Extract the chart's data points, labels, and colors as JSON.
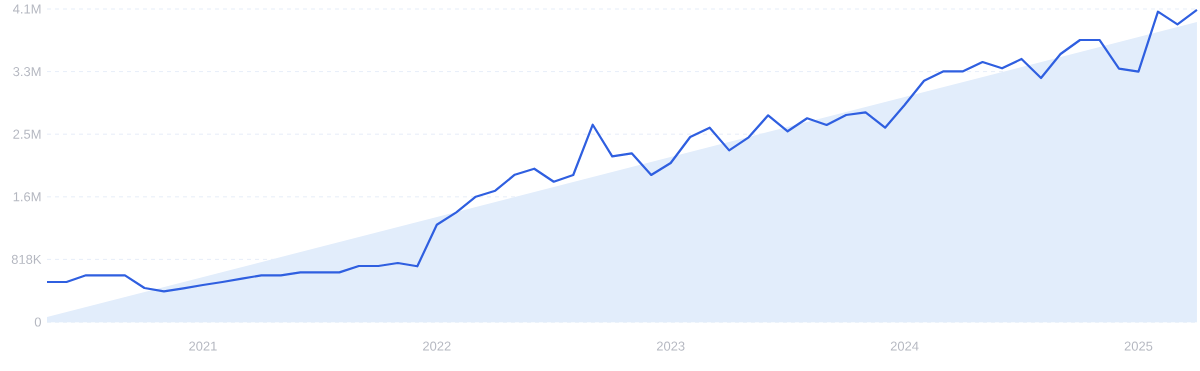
{
  "chart_data": {
    "type": "line",
    "x": [
      "2020-05",
      "2020-06",
      "2020-07",
      "2020-08",
      "2020-09",
      "2020-10",
      "2020-11",
      "2020-12",
      "2021-01",
      "2021-02",
      "2021-03",
      "2021-04",
      "2021-05",
      "2021-06",
      "2021-07",
      "2021-08",
      "2021-09",
      "2021-10",
      "2021-11",
      "2021-12",
      "2022-01",
      "2022-02",
      "2022-03",
      "2022-04",
      "2022-05",
      "2022-06",
      "2022-07",
      "2022-08",
      "2022-09",
      "2022-10",
      "2022-11",
      "2022-12",
      "2023-01",
      "2023-02",
      "2023-03",
      "2023-04",
      "2023-05",
      "2023-06",
      "2023-07",
      "2023-08",
      "2023-09",
      "2023-10",
      "2023-11",
      "2023-12",
      "2024-01",
      "2024-02",
      "2024-03",
      "2024-04",
      "2024-05",
      "2024-06",
      "2024-07",
      "2024-08",
      "2024-09",
      "2024-10",
      "2024-11",
      "2024-12",
      "2025-01",
      "2025-02",
      "2025-03",
      "2025-04"
    ],
    "series": [
      {
        "type": "area",
        "color": "#e2edfb",
        "x": [
          "2020-05",
          "2025-04"
        ],
        "values": [
          65000,
          3920000
        ]
      },
      {
        "color": "#2f5fe0",
        "values": [
          523000,
          523000,
          610000,
          610000,
          610000,
          444000,
          401000,
          440000,
          483000,
          523000,
          566000,
          610000,
          610000,
          649000,
          649000,
          649000,
          732000,
          732000,
          771000,
          728000,
          1271000,
          1433000,
          1637000,
          1716000,
          1925000,
          2003000,
          1833000,
          1921000,
          2578000,
          2165000,
          2204000,
          1921000,
          2078000,
          2417000,
          2539000,
          2243000,
          2413000,
          2701000,
          2492000,
          2662000,
          2574000,
          2705000,
          2740000,
          2539000,
          2836000,
          3153000,
          3276000,
          3276000,
          3397000,
          3315000,
          3437000,
          3188000,
          3502000,
          3685000,
          3685000,
          3310000,
          3271000,
          4055000,
          3890000,
          4077000
        ]
      }
    ],
    "xlim": [
      "2020-05",
      "2025-04"
    ],
    "xticks": [
      {
        "value": "2021-01",
        "label": "2021"
      },
      {
        "value": "2022-01",
        "label": "2022"
      },
      {
        "value": "2023-01",
        "label": "2023"
      },
      {
        "value": "2024-01",
        "label": "2024"
      },
      {
        "value": "2025-01",
        "label": "2025"
      }
    ],
    "ylim": [
      0,
      4090000
    ],
    "yticks": [
      0,
      {
        "value": 818000,
        "label": "818K"
      },
      {
        "value": 1636000,
        "label": "1.6M"
      },
      {
        "value": 2454000,
        "label": "2.5M"
      },
      {
        "value": 3272000,
        "label": "3.3M"
      },
      {
        "value": 4090000,
        "label": "4.1M"
      }
    ],
    "grid": "y"
  }
}
